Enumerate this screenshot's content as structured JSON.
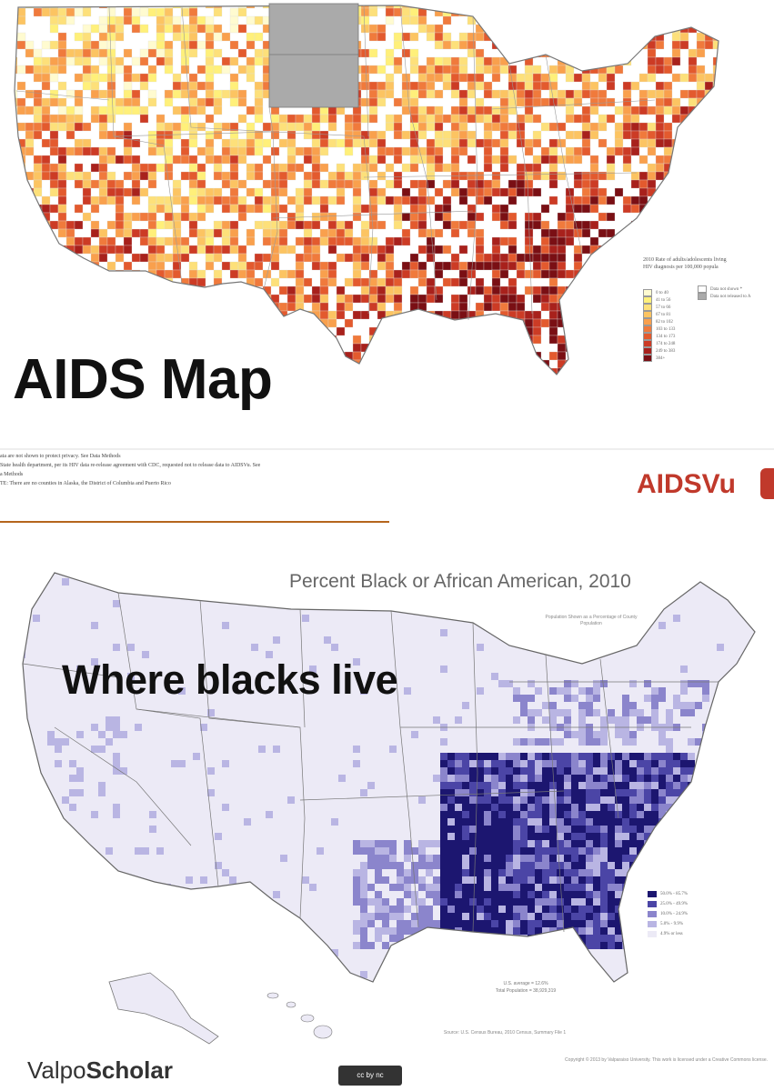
{
  "top_map": {
    "overlay_title": "AIDS Map",
    "legend_title_1": "2010 Rate of adults/adolescents living",
    "legend_title_2": "HIV diagnosis per 100,000 popula",
    "legend_items": [
      {
        "label": "0 to 40",
        "color": "#fffbd0"
      },
      {
        "label": "41 to 56",
        "color": "#fff07a"
      },
      {
        "label": "57 to 66",
        "color": "#fde07a"
      },
      {
        "label": "67 to 81",
        "color": "#fcc462"
      },
      {
        "label": "82 to 102",
        "color": "#f9a04d"
      },
      {
        "label": "103 to 133",
        "color": "#f07a3c"
      },
      {
        "label": "134 to 173",
        "color": "#e35a2e"
      },
      {
        "label": "174 to 248",
        "color": "#cc3b25"
      },
      {
        "label": "249 to 383",
        "color": "#a8211c"
      },
      {
        "label": "384+",
        "color": "#7a0f14"
      }
    ],
    "legend_extra": [
      {
        "label": "Data not shown *",
        "color": "#ffffff"
      },
      {
        "label": "Data not released to A",
        "color": "#aaaaaa"
      }
    ],
    "notes": [
      "ata are not shown to protect privacy. See Data Methods",
      "State health department, per its HIV data re-release agreement with CDC, requested not to release data to AIDSVu. See",
      "a Methods",
      "TE: There are no counties in Alaska, the District of Columbia and Puerto Rico"
    ],
    "brand": "AIDSVu"
  },
  "bottom_map": {
    "title": "Percent Black or African American, 2010",
    "subtitle": "Population Shown as a Percentage of County Population",
    "overlay_title": "Where blacks live",
    "legend_items": [
      {
        "label": "50.0% - 85.7%",
        "color": "#1c1670"
      },
      {
        "label": "25.0% - 49.9%",
        "color": "#4b45a6"
      },
      {
        "label": "10.0% - 24.9%",
        "color": "#8b85cc"
      },
      {
        "label": "5.0% - 9.9%",
        "color": "#b9b5e3"
      },
      {
        "label": "4.9% or less",
        "color": "#eceaf6"
      }
    ],
    "us_average": "U.S. average = 12.6%",
    "total_population": "Total Population = 38,929,319",
    "source": "Source: U.S. Census Bureau, 2010 Census, Summary File 1",
    "brand_prefix": "Valpo",
    "brand_suffix": "Scholar",
    "cc_badge": "cc by nc",
    "copyright": "Copyright © 2013 by Valparaiso University. This work is licensed under a Creative Commons license."
  },
  "colors": {
    "divider": "#b5651d"
  }
}
